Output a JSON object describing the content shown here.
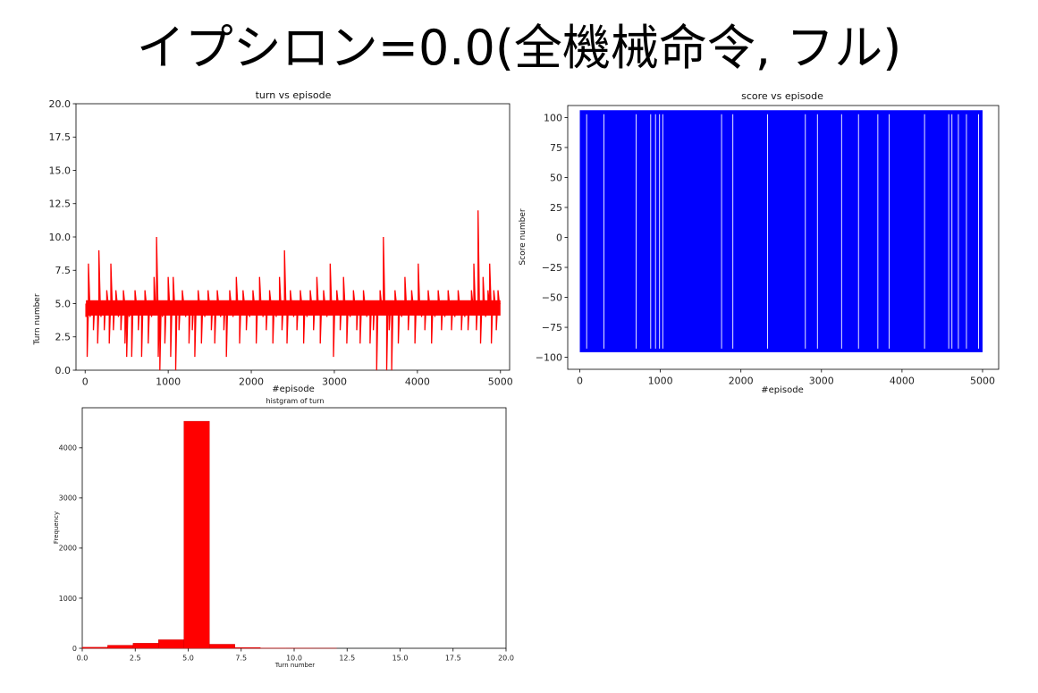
{
  "slide": {
    "title": "イプシロン=0.0(全機械命令, フル)"
  },
  "colors": {
    "turn_line": "#ff0000",
    "score_line": "#0000ff",
    "hist_bar": "#ff0000",
    "axes": "#000000"
  },
  "chart_data": [
    {
      "id": "turn",
      "type": "line",
      "title": "turn vs episode",
      "xlabel": "#episode",
      "ylabel": "Turn number",
      "xlim": [
        -110,
        5110
      ],
      "ylim": [
        0,
        20
      ],
      "xticks": [
        0,
        1000,
        2000,
        3000,
        4000,
        5000
      ],
      "yticks": [
        0.0,
        2.5,
        5.0,
        7.5,
        10.0,
        12.5,
        15.0,
        17.5,
        20.0
      ],
      "xtick_labels": [
        "0",
        "1000",
        "2000",
        "3000",
        "4000",
        "5000"
      ],
      "ytick_labels": [
        "0.0",
        "2.5",
        "5.0",
        "7.5",
        "10.0",
        "12.5",
        "15.0",
        "17.5",
        "20.0"
      ],
      "series": [
        {
          "baseline": 5,
          "spikes": [
            {
              "x": 10,
              "y": 4
            },
            {
              "x": 25,
              "y": 1
            },
            {
              "x": 40,
              "y": 8
            },
            {
              "x": 60,
              "y": 4
            },
            {
              "x": 100,
              "y": 3
            },
            {
              "x": 150,
              "y": 2
            },
            {
              "x": 165,
              "y": 9
            },
            {
              "x": 190,
              "y": 4
            },
            {
              "x": 230,
              "y": 3
            },
            {
              "x": 260,
              "y": 6
            },
            {
              "x": 290,
              "y": 2
            },
            {
              "x": 310,
              "y": 8
            },
            {
              "x": 340,
              "y": 3
            },
            {
              "x": 370,
              "y": 6
            },
            {
              "x": 400,
              "y": 4
            },
            {
              "x": 430,
              "y": 3
            },
            {
              "x": 460,
              "y": 6
            },
            {
              "x": 480,
              "y": 2
            },
            {
              "x": 500,
              "y": 1
            },
            {
              "x": 530,
              "y": 4
            },
            {
              "x": 560,
              "y": 1
            },
            {
              "x": 600,
              "y": 6
            },
            {
              "x": 640,
              "y": 3
            },
            {
              "x": 680,
              "y": 1
            },
            {
              "x": 720,
              "y": 6
            },
            {
              "x": 760,
              "y": 2
            },
            {
              "x": 800,
              "y": 4
            },
            {
              "x": 830,
              "y": 7
            },
            {
              "x": 860,
              "y": 10
            },
            {
              "x": 880,
              "y": 1
            },
            {
              "x": 900,
              "y": 0
            },
            {
              "x": 930,
              "y": 4
            },
            {
              "x": 960,
              "y": 2
            },
            {
              "x": 1000,
              "y": 7
            },
            {
              "x": 1030,
              "y": 1
            },
            {
              "x": 1060,
              "y": 7
            },
            {
              "x": 1090,
              "y": 0
            },
            {
              "x": 1130,
              "y": 3
            },
            {
              "x": 1170,
              "y": 6
            },
            {
              "x": 1210,
              "y": 4
            },
            {
              "x": 1250,
              "y": 2
            },
            {
              "x": 1290,
              "y": 3
            },
            {
              "x": 1320,
              "y": 1
            },
            {
              "x": 1360,
              "y": 6
            },
            {
              "x": 1400,
              "y": 2
            },
            {
              "x": 1440,
              "y": 4
            },
            {
              "x": 1480,
              "y": 6
            },
            {
              "x": 1520,
              "y": 3
            },
            {
              "x": 1560,
              "y": 2
            },
            {
              "x": 1590,
              "y": 6
            },
            {
              "x": 1630,
              "y": 4
            },
            {
              "x": 1670,
              "y": 3
            },
            {
              "x": 1700,
              "y": 1
            },
            {
              "x": 1740,
              "y": 6
            },
            {
              "x": 1780,
              "y": 4
            },
            {
              "x": 1820,
              "y": 7
            },
            {
              "x": 1860,
              "y": 2
            },
            {
              "x": 1900,
              "y": 6
            },
            {
              "x": 1940,
              "y": 3
            },
            {
              "x": 1980,
              "y": 4
            },
            {
              "x": 2020,
              "y": 6
            },
            {
              "x": 2060,
              "y": 2
            },
            {
              "x": 2100,
              "y": 7
            },
            {
              "x": 2140,
              "y": 4
            },
            {
              "x": 2180,
              "y": 3
            },
            {
              "x": 2220,
              "y": 6
            },
            {
              "x": 2260,
              "y": 2
            },
            {
              "x": 2300,
              "y": 4
            },
            {
              "x": 2340,
              "y": 7
            },
            {
              "x": 2370,
              "y": 3
            },
            {
              "x": 2400,
              "y": 9
            },
            {
              "x": 2430,
              "y": 2
            },
            {
              "x": 2470,
              "y": 6
            },
            {
              "x": 2510,
              "y": 4
            },
            {
              "x": 2550,
              "y": 3
            },
            {
              "x": 2590,
              "y": 6
            },
            {
              "x": 2630,
              "y": 2
            },
            {
              "x": 2670,
              "y": 4
            },
            {
              "x": 2710,
              "y": 6
            },
            {
              "x": 2750,
              "y": 3
            },
            {
              "x": 2790,
              "y": 7
            },
            {
              "x": 2830,
              "y": 2
            },
            {
              "x": 2870,
              "y": 6
            },
            {
              "x": 2910,
              "y": 4
            },
            {
              "x": 2950,
              "y": 8
            },
            {
              "x": 2990,
              "y": 1
            },
            {
              "x": 3030,
              "y": 6
            },
            {
              "x": 3070,
              "y": 3
            },
            {
              "x": 3110,
              "y": 7
            },
            {
              "x": 3150,
              "y": 2
            },
            {
              "x": 3190,
              "y": 4
            },
            {
              "x": 3230,
              "y": 6
            },
            {
              "x": 3270,
              "y": 3
            },
            {
              "x": 3310,
              "y": 2
            },
            {
              "x": 3350,
              "y": 6
            },
            {
              "x": 3390,
              "y": 4
            },
            {
              "x": 3430,
              "y": 2
            },
            {
              "x": 3470,
              "y": 3
            },
            {
              "x": 3510,
              "y": 0
            },
            {
              "x": 3550,
              "y": 6
            },
            {
              "x": 3590,
              "y": 10
            },
            {
              "x": 3630,
              "y": 0
            },
            {
              "x": 3660,
              "y": 3
            },
            {
              "x": 3690,
              "y": 0
            },
            {
              "x": 3730,
              "y": 6
            },
            {
              "x": 3770,
              "y": 2
            },
            {
              "x": 3810,
              "y": 4
            },
            {
              "x": 3850,
              "y": 7
            },
            {
              "x": 3890,
              "y": 3
            },
            {
              "x": 3930,
              "y": 6
            },
            {
              "x": 3970,
              "y": 2
            },
            {
              "x": 4010,
              "y": 8
            },
            {
              "x": 4050,
              "y": 4
            },
            {
              "x": 4090,
              "y": 3
            },
            {
              "x": 4130,
              "y": 6
            },
            {
              "x": 4170,
              "y": 2
            },
            {
              "x": 4210,
              "y": 4
            },
            {
              "x": 4250,
              "y": 6
            },
            {
              "x": 4290,
              "y": 3
            },
            {
              "x": 4330,
              "y": 4
            },
            {
              "x": 4370,
              "y": 6
            },
            {
              "x": 4410,
              "y": 3
            },
            {
              "x": 4450,
              "y": 4
            },
            {
              "x": 4490,
              "y": 6
            },
            {
              "x": 4530,
              "y": 3
            },
            {
              "x": 4570,
              "y": 4
            },
            {
              "x": 4610,
              "y": 3
            },
            {
              "x": 4650,
              "y": 6
            },
            {
              "x": 4680,
              "y": 8
            },
            {
              "x": 4710,
              "y": 3
            },
            {
              "x": 4730,
              "y": 12
            },
            {
              "x": 4760,
              "y": 2
            },
            {
              "x": 4790,
              "y": 7
            },
            {
              "x": 4820,
              "y": 4
            },
            {
              "x": 4850,
              "y": 6
            },
            {
              "x": 4870,
              "y": 8
            },
            {
              "x": 4890,
              "y": 2
            },
            {
              "x": 4920,
              "y": 6
            },
            {
              "x": 4950,
              "y": 3
            },
            {
              "x": 4970,
              "y": 6
            }
          ],
          "end_x": 5000
        }
      ]
    },
    {
      "id": "score",
      "type": "line",
      "title": "score vs episode",
      "xlabel": "#episode",
      "ylabel": "Score number",
      "xlim": [
        -150,
        5200
      ],
      "ylim": [
        -110,
        110
      ],
      "xticks": [
        0,
        1000,
        2000,
        3000,
        4000,
        5000
      ],
      "yticks": [
        -100,
        -75,
        -50,
        -25,
        0,
        25,
        50,
        75,
        100
      ],
      "xtick_labels": [
        "0",
        "1000",
        "2000",
        "3000",
        "4000",
        "5000"
      ],
      "ytick_labels": [
        "−100",
        "−75",
        "−50",
        "−25",
        "0",
        "25",
        "50",
        "75",
        "100"
      ],
      "series": [
        {
          "high": 105,
          "low": -95,
          "x_range": [
            0,
            5000
          ],
          "white_gaps": [
            85,
            300,
            700,
            880,
            940,
            990,
            1030,
            1760,
            1900,
            2330,
            2800,
            2950,
            3250,
            3460,
            3700,
            3840,
            4280,
            4580,
            4620,
            4700,
            4800,
            4950
          ]
        }
      ]
    },
    {
      "id": "hist",
      "type": "bar",
      "title": "histgram of turn",
      "xlabel": "Turn number",
      "ylabel": "Frequency",
      "xlim": [
        0,
        20
      ],
      "ylim": [
        0,
        4800
      ],
      "xticks": [
        0,
        2.5,
        5,
        7.5,
        10,
        12.5,
        15,
        17.5,
        20
      ],
      "yticks": [
        0,
        1000,
        2000,
        3000,
        4000
      ],
      "xtick_labels": [
        "0.0",
        "2.5",
        "5.0",
        "7.5",
        "10.0",
        "12.5",
        "15.0",
        "17.5",
        "20.0"
      ],
      "ytick_labels": [
        "0",
        "1000",
        "2000",
        "3000",
        "4000"
      ],
      "bins": [
        {
          "x0": 0.0,
          "x1": 1.2,
          "value": 20
        },
        {
          "x0": 1.2,
          "x1": 2.4,
          "value": 60
        },
        {
          "x0": 2.4,
          "x1": 3.6,
          "value": 100
        },
        {
          "x0": 3.6,
          "x1": 4.8,
          "value": 170
        },
        {
          "x0": 4.8,
          "x1": 6.0,
          "value": 4530
        },
        {
          "x0": 6.0,
          "x1": 7.2,
          "value": 80
        },
        {
          "x0": 7.2,
          "x1": 8.4,
          "value": 15
        },
        {
          "x0": 8.4,
          "x1": 9.6,
          "value": 3
        },
        {
          "x0": 9.6,
          "x1": 10.8,
          "value": 2
        },
        {
          "x0": 10.8,
          "x1": 12.0,
          "value": 1
        }
      ]
    }
  ]
}
